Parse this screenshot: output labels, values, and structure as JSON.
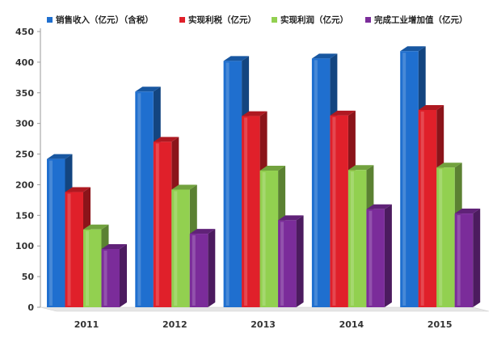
{
  "chart_data": {
    "type": "bar",
    "categories": [
      "2011",
      "2012",
      "2013",
      "2014",
      "2015"
    ],
    "series": [
      {
        "name": "销售收入（亿元）（含税）",
        "values": [
          242,
          352,
          402,
          406,
          418
        ],
        "color": "#1f6fcf"
      },
      {
        "name": "实现利税（亿元）",
        "values": [
          188,
          270,
          312,
          313,
          322
        ],
        "color": "#e0202a"
      },
      {
        "name": "实现利润（亿元）",
        "values": [
          127,
          192,
          223,
          224,
          228
        ],
        "color": "#92d050"
      },
      {
        "name": "完成工业增加值（亿元）",
        "values": [
          95,
          120,
          142,
          160,
          153
        ],
        "color": "#7b2c9a"
      }
    ],
    "yticks": [
      0,
      50,
      100,
      150,
      200,
      250,
      300,
      350,
      400,
      450
    ],
    "ylim": [
      0,
      450
    ],
    "grid": false,
    "legend": "top",
    "style": "3d-column"
  }
}
